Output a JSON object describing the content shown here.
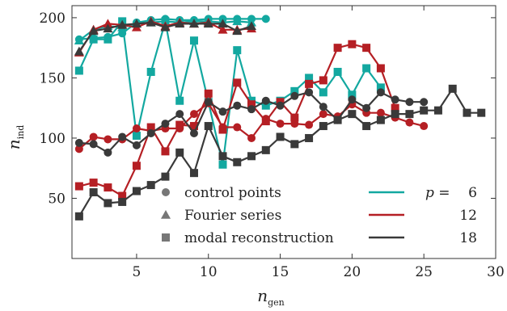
{
  "chart_data": {
    "type": "line",
    "xlabel": "n",
    "xlabel_sub": "gen",
    "ylabel": "n",
    "ylabel_sub": "ind",
    "xlim": [
      0.5,
      30
    ],
    "ylim": [
      0,
      210
    ],
    "xticks": [
      5,
      10,
      15,
      20,
      25,
      30
    ],
    "yticks": [
      50,
      100,
      150,
      200
    ],
    "grid": false,
    "legend_position": "bottom",
    "colors": {
      "p6": "#13a8a0",
      "p12": "#b51f24",
      "p18": "#3a3a3a"
    },
    "marker_legend": [
      {
        "marker": "circle",
        "label": "control points"
      },
      {
        "marker": "triangle",
        "label": "Fourier series"
      },
      {
        "marker": "square",
        "label": "modal reconstruction"
      }
    ],
    "color_legend": {
      "prefix": "p =",
      "entries": [
        {
          "key": "p6",
          "label": "6"
        },
        {
          "key": "p12",
          "label": "12"
        },
        {
          "key": "p18",
          "label": "18"
        }
      ]
    },
    "series": [
      {
        "group": "p6",
        "marker": "circle",
        "x": [
          1,
          2,
          3,
          4,
          5,
          6,
          7,
          8,
          9,
          10,
          11,
          12,
          13,
          14
        ],
        "values": [
          182,
          183,
          184,
          187,
          196,
          198,
          199,
          198,
          198,
          199,
          199,
          199,
          199,
          199
        ]
      },
      {
        "group": "p6",
        "marker": "triangle",
        "x": [
          1,
          2,
          3,
          4,
          5,
          6,
          7,
          8,
          9,
          10,
          11,
          12,
          13
        ],
        "values": [
          181,
          190,
          193,
          192,
          195,
          196,
          197,
          196,
          197,
          197,
          196,
          197,
          196
        ]
      },
      {
        "group": "p6",
        "marker": "square",
        "x": [
          1,
          2,
          3,
          4,
          5,
          6,
          7,
          8,
          9,
          10,
          11,
          12,
          13,
          14,
          15,
          16,
          17,
          18,
          19,
          20,
          21,
          22
        ],
        "values": [
          156,
          182,
          182,
          197,
          102,
          155,
          197,
          131,
          181,
          130,
          78,
          173,
          131,
          127,
          131,
          139,
          150,
          138,
          155,
          136,
          158,
          142
        ]
      },
      {
        "group": "p12",
        "marker": "circle",
        "x": [
          1,
          2,
          3,
          4,
          5,
          6,
          7,
          8,
          9,
          10,
          11,
          12,
          13,
          14,
          15,
          16,
          17,
          18,
          19,
          20,
          21,
          22,
          23,
          24,
          25
        ],
        "values": [
          91,
          101,
          99,
          99,
          108,
          106,
          108,
          108,
          120,
          129,
          109,
          109,
          100,
          116,
          112,
          112,
          111,
          120,
          118,
          128,
          121,
          121,
          117,
          113,
          110
        ]
      },
      {
        "group": "p12",
        "marker": "triangle",
        "x": [
          1,
          2,
          3,
          4,
          5,
          6,
          7,
          8,
          9,
          10,
          11,
          12,
          13
        ],
        "values": [
          171,
          190,
          195,
          194,
          192,
          197,
          193,
          196,
          195,
          196,
          190,
          190,
          191
        ]
      },
      {
        "group": "p12",
        "marker": "square",
        "x": [
          1,
          2,
          3,
          4,
          5,
          6,
          7,
          8,
          9,
          10,
          11,
          12,
          13,
          14,
          15,
          16,
          17,
          18,
          19,
          20,
          21,
          22,
          23
        ],
        "values": [
          60,
          63,
          59,
          52,
          77,
          109,
          89,
          111,
          110,
          137,
          107,
          146,
          128,
          114,
          130,
          117,
          145,
          148,
          175,
          178,
          175,
          158,
          125
        ]
      },
      {
        "group": "p18",
        "marker": "circle",
        "x": [
          1,
          2,
          3,
          4,
          5,
          6,
          7,
          8,
          9,
          10,
          11,
          12,
          13,
          14,
          15,
          16,
          17,
          18,
          19,
          20,
          21,
          22,
          23,
          24,
          25
        ],
        "values": [
          96,
          95,
          88,
          101,
          94,
          104,
          112,
          120,
          104,
          130,
          122,
          127,
          124,
          131,
          127,
          135,
          138,
          126,
          115,
          132,
          125,
          138,
          132,
          130,
          130
        ]
      },
      {
        "group": "p18",
        "marker": "triangle",
        "x": [
          1,
          2,
          3,
          4,
          5,
          6,
          7,
          8,
          9,
          10,
          11,
          12,
          13
        ],
        "values": [
          172,
          189,
          191,
          194,
          195,
          196,
          192,
          195,
          195,
          195,
          195,
          189,
          193
        ]
      },
      {
        "group": "p18",
        "marker": "square",
        "x": [
          1,
          2,
          3,
          4,
          5,
          6,
          7,
          8,
          9,
          10,
          11,
          12,
          13,
          14,
          15,
          16,
          17,
          18,
          19,
          20,
          21,
          22,
          23,
          24,
          25,
          26,
          27,
          28,
          29
        ],
        "values": [
          35,
          55,
          46,
          47,
          56,
          61,
          68,
          88,
          71,
          110,
          85,
          80,
          85,
          90,
          101,
          95,
          100,
          110,
          115,
          120,
          110,
          115,
          120,
          120,
          123,
          123,
          141,
          121,
          121
        ]
      }
    ]
  }
}
